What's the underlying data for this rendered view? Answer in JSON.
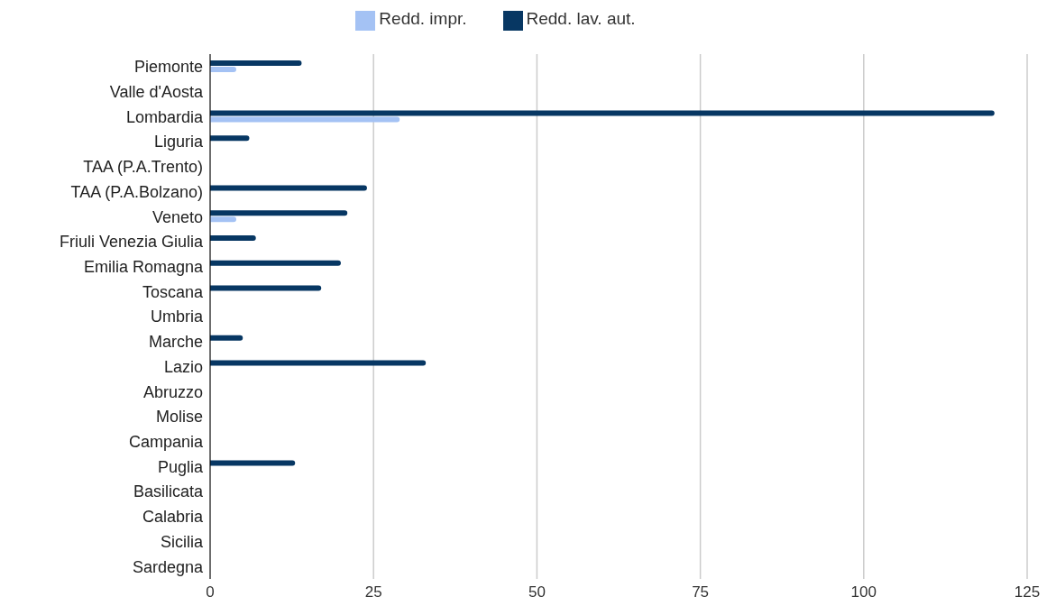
{
  "chart_data": {
    "type": "bar",
    "orientation": "horizontal",
    "categories": [
      "Piemonte",
      "Valle d'Aosta",
      "Lombardia",
      "Liguria",
      "TAA (P.A.Trento)",
      "TAA (P.A.Bolzano)",
      "Veneto",
      "Friuli Venezia Giulia",
      "Emilia Romagna",
      "Toscana",
      "Umbria",
      "Marche",
      "Lazio",
      "Abruzzo",
      "Molise",
      "Campania",
      "Puglia",
      "Basilicata",
      "Calabria",
      "Sicilia",
      "Sardegna"
    ],
    "series": [
      {
        "name": "Redd. lav. aut.",
        "color": "#073763",
        "values": [
          14,
          0,
          120,
          6,
          0,
          24,
          21,
          7,
          20,
          17,
          0,
          5,
          33,
          0,
          0,
          0,
          13,
          0,
          0,
          0,
          0
        ]
      },
      {
        "name": "Redd. impr.",
        "color": "#a4c2f4",
        "values": [
          4,
          0,
          29,
          0,
          0,
          0,
          4,
          0,
          0,
          0,
          0,
          0,
          0,
          0,
          0,
          0,
          0,
          0,
          0,
          0,
          0
        ]
      }
    ],
    "xlim": [
      0,
      125
    ],
    "xticks": [
      0,
      25,
      50,
      75,
      100,
      125
    ],
    "grid": "x",
    "legend": "top"
  }
}
